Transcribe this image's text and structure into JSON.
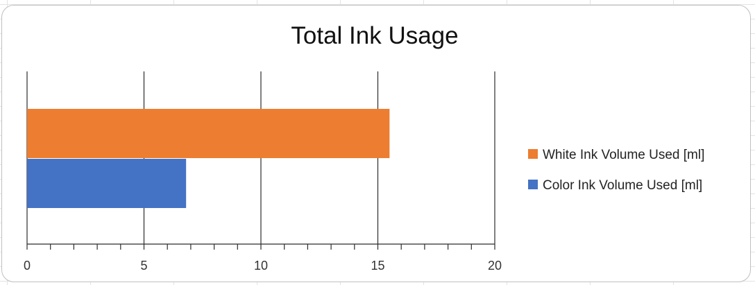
{
  "chart_data": {
    "type": "bar",
    "orientation": "horizontal",
    "title": "Total Ink Usage",
    "xlabel": "",
    "ylabel": "",
    "xlim": [
      0,
      20
    ],
    "x_ticks": [
      "0",
      "5",
      "10",
      "15",
      "20"
    ],
    "grid": true,
    "legend_position": "right",
    "series": [
      {
        "name": "White Ink Volume Used [ml]",
        "value": 15.5,
        "color": "#ED7D31"
      },
      {
        "name": "Color Ink Volume Used [ml]",
        "value": 6.8,
        "color": "#4472C4"
      }
    ]
  }
}
